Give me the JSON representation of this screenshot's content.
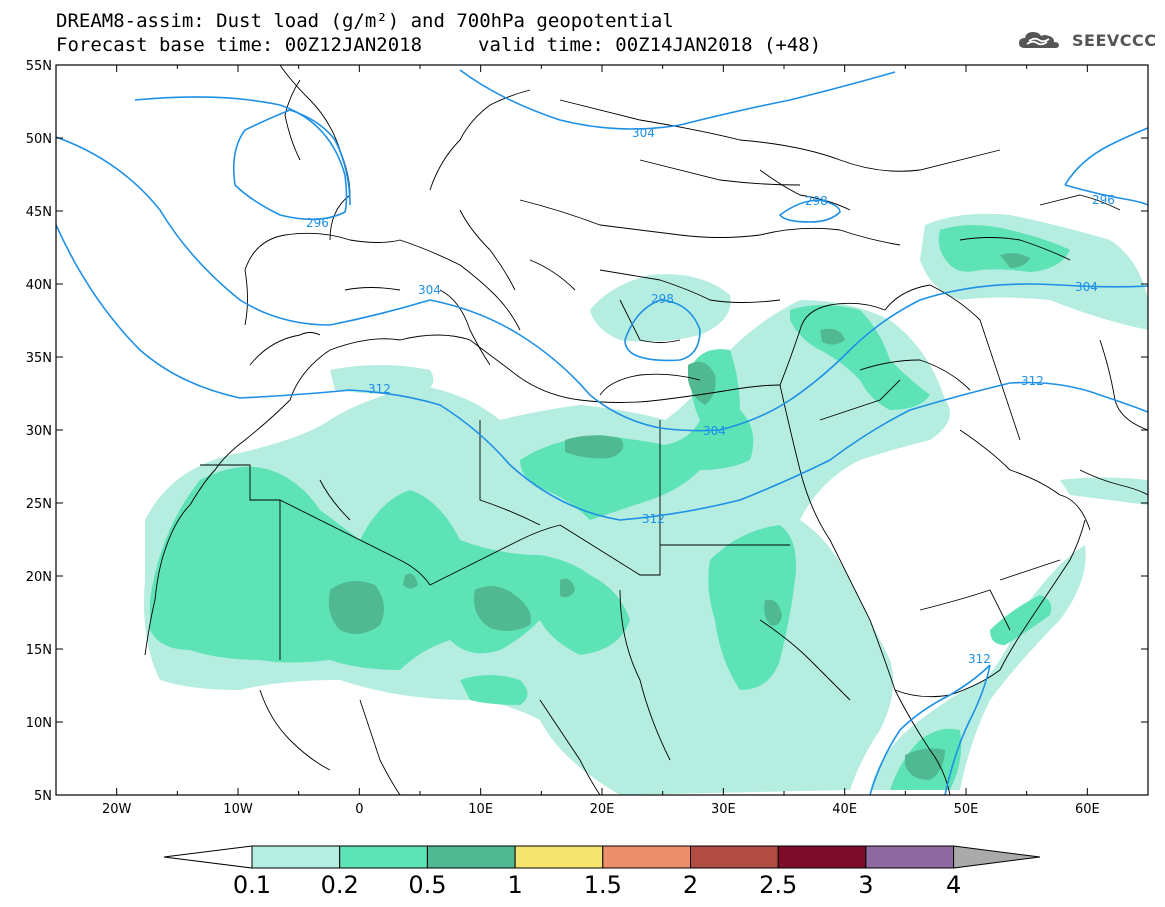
{
  "header": {
    "title_line1": "DREAM8-assim: Dust load (g/m²) and 700hPa geopotential",
    "title_line2a": "Forecast base time: 00Z12JAN2018",
    "title_line2b": "valid time: 00Z14JAN2018 (+48)",
    "logo_text": "SEEVCCC"
  },
  "map": {
    "lon_labels": [
      "20W",
      "10W",
      "0",
      "10E",
      "20E",
      "30E",
      "40E",
      "50E",
      "60E"
    ],
    "lat_labels": [
      "55N",
      "50N",
      "45N",
      "40N",
      "35N",
      "30N",
      "25N",
      "20N",
      "15N",
      "10N",
      "5N"
    ],
    "lon_range": [
      -25,
      65
    ],
    "lat_range": [
      5,
      55
    ],
    "contour_labels": [
      "296",
      "304",
      "304",
      "298",
      "312",
      "304",
      "312",
      "312",
      "312",
      "296",
      "304",
      "298"
    ],
    "contour_color": "#1e90e6",
    "border_color": "#000000"
  },
  "colorbar": {
    "tick_labels": [
      "0.1",
      "0.2",
      "0.5",
      "1",
      "1.5",
      "2",
      "2.5",
      "3",
      "4"
    ],
    "colors": [
      "#b5ede0",
      "#5ee3b7",
      "#50b991",
      "#f5e56e",
      "#ec8e69",
      "#b04c43",
      "#7d0d2a",
      "#8e6aa0",
      "#aaaaaa"
    ],
    "low_color": "#ffffff"
  }
}
